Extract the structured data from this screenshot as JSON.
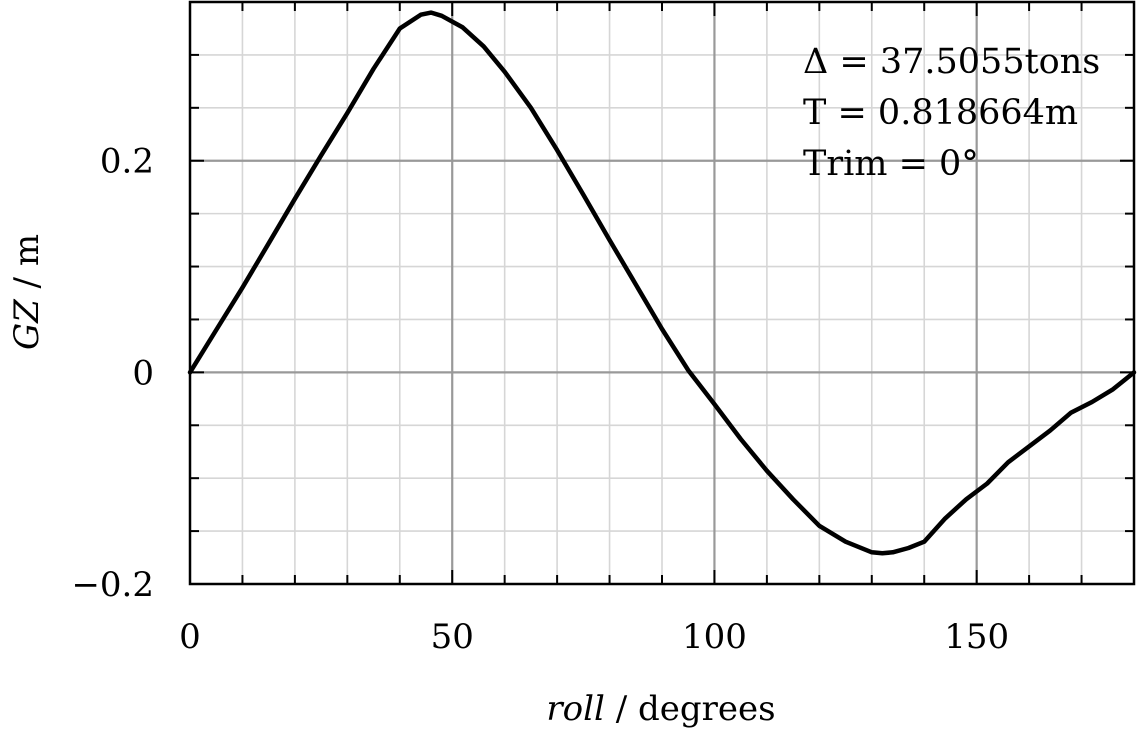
{
  "chart_data": {
    "type": "line",
    "title": "",
    "xlabel_var": "roll",
    "xlabel_unit": " / degrees",
    "ylabel_var": "GZ",
    "ylabel_unit": " / m",
    "xlim": [
      0,
      180
    ],
    "ylim": [
      -0.2,
      0.35
    ],
    "grid": true,
    "x_ticks": [
      0,
      50,
      100,
      150
    ],
    "x_tick_labels": [
      "0",
      "50",
      "100",
      "150"
    ],
    "y_ticks": [
      -0.2,
      0,
      0.2
    ],
    "y_tick_labels": [
      "−0.2",
      "0",
      "0.2"
    ],
    "annotations": [
      "Δ = 37.5055tons",
      "T = 0.818664m",
      "Trim = 0°"
    ],
    "series": [
      {
        "color": "#000000",
        "x": [
          0,
          5,
          10,
          15,
          20,
          25,
          30,
          35,
          40,
          44,
          46,
          48,
          52,
          56,
          60,
          65,
          70,
          75,
          80,
          85,
          90,
          95,
          100,
          105,
          110,
          115,
          120,
          125,
          130,
          132,
          134,
          137,
          140,
          144,
          148,
          152,
          156,
          160,
          164,
          168,
          172,
          176,
          180
        ],
        "y": [
          0,
          0.04,
          0.08,
          0.122,
          0.164,
          0.205,
          0.245,
          0.287,
          0.325,
          0.338,
          0.34,
          0.337,
          0.326,
          0.308,
          0.284,
          0.25,
          0.21,
          0.168,
          0.125,
          0.083,
          0.041,
          0.002,
          -0.03,
          -0.063,
          -0.093,
          -0.12,
          -0.145,
          -0.16,
          -0.17,
          -0.171,
          -0.17,
          -0.166,
          -0.16,
          -0.138,
          -0.12,
          -0.105,
          -0.085,
          -0.07,
          -0.055,
          -0.038,
          -0.028,
          -0.016,
          0
        ]
      }
    ]
  }
}
